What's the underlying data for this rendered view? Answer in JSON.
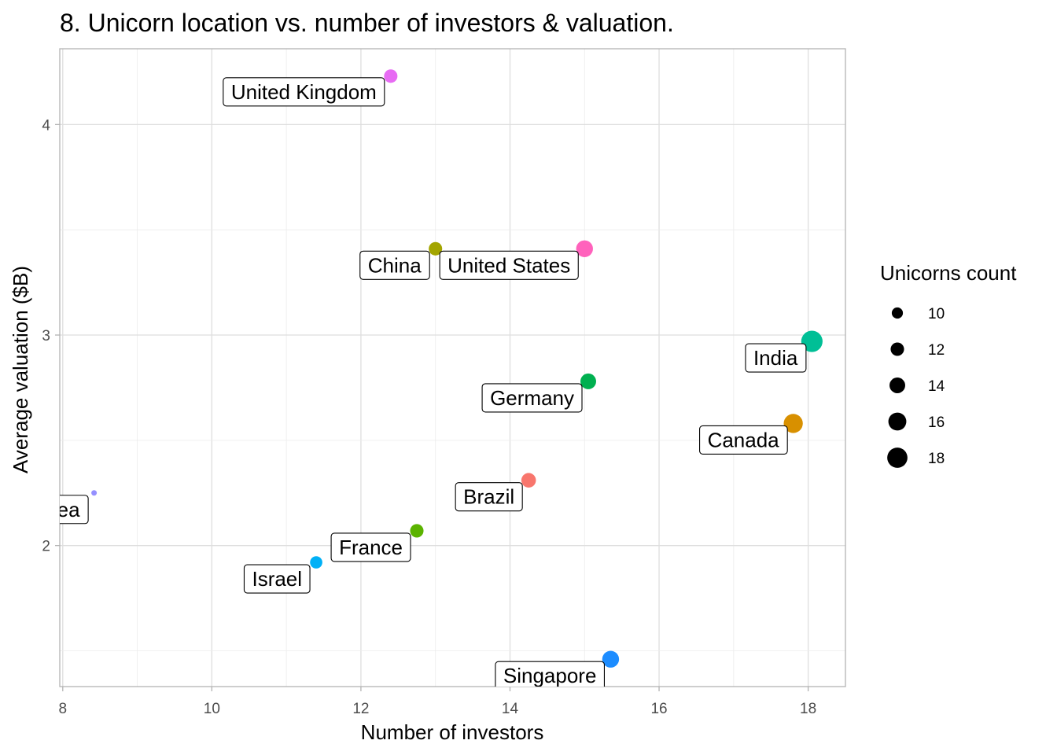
{
  "chart_data": {
    "type": "scatter",
    "title": "8. Unicorn location vs. number of investors & valuation.",
    "xlabel": "Number of investors",
    "ylabel": "Average valuation ($B)",
    "xlim": [
      7.96,
      18.5
    ],
    "ylim": [
      1.33,
      4.36
    ],
    "x_ticks": [
      8,
      10,
      12,
      14,
      16,
      18
    ],
    "x_tick_labels": [
      "8",
      "10",
      "12",
      "14",
      "16",
      "18"
    ],
    "y_ticks": [
      2,
      3,
      4
    ],
    "y_tick_labels": [
      "2",
      "3",
      "4"
    ],
    "grid": true,
    "legend": {
      "title": "Unicorns count",
      "placement": "right",
      "sizes": [
        10,
        12,
        14,
        16,
        18
      ],
      "labels": [
        "10",
        "12",
        "14",
        "16",
        "18"
      ]
    },
    "points": [
      {
        "label": "United Kingdom",
        "x": 12.4,
        "y": 4.23,
        "count": 12,
        "color": "#e76bf3"
      },
      {
        "label": "China",
        "x": 13.0,
        "y": 3.41,
        "count": 12,
        "color": "#a3a500"
      },
      {
        "label": "United States",
        "x": 15.0,
        "y": 3.41,
        "count": 15,
        "color": "#ff62bc"
      },
      {
        "label": "India",
        "x": 18.05,
        "y": 2.97,
        "count": 19,
        "color": "#00bf96"
      },
      {
        "label": "Germany",
        "x": 15.05,
        "y": 2.78,
        "count": 14,
        "color": "#00b050"
      },
      {
        "label": "Canada",
        "x": 17.8,
        "y": 2.58,
        "count": 17,
        "color": "#d89000"
      },
      {
        "label": "Brazil",
        "x": 14.25,
        "y": 2.31,
        "count": 13,
        "color": "#f8766d"
      },
      {
        "label": "Korea",
        "x": 8.42,
        "y": 2.25,
        "count": 5,
        "color": "#9590ff"
      },
      {
        "label": "France",
        "x": 12.75,
        "y": 2.07,
        "count": 12,
        "color": "#5bb300"
      },
      {
        "label": "Israel",
        "x": 11.4,
        "y": 1.92,
        "count": 11,
        "color": "#00b0f6"
      },
      {
        "label": "Singapore",
        "x": 15.35,
        "y": 1.46,
        "count": 15,
        "color": "#1c8cff"
      }
    ]
  }
}
